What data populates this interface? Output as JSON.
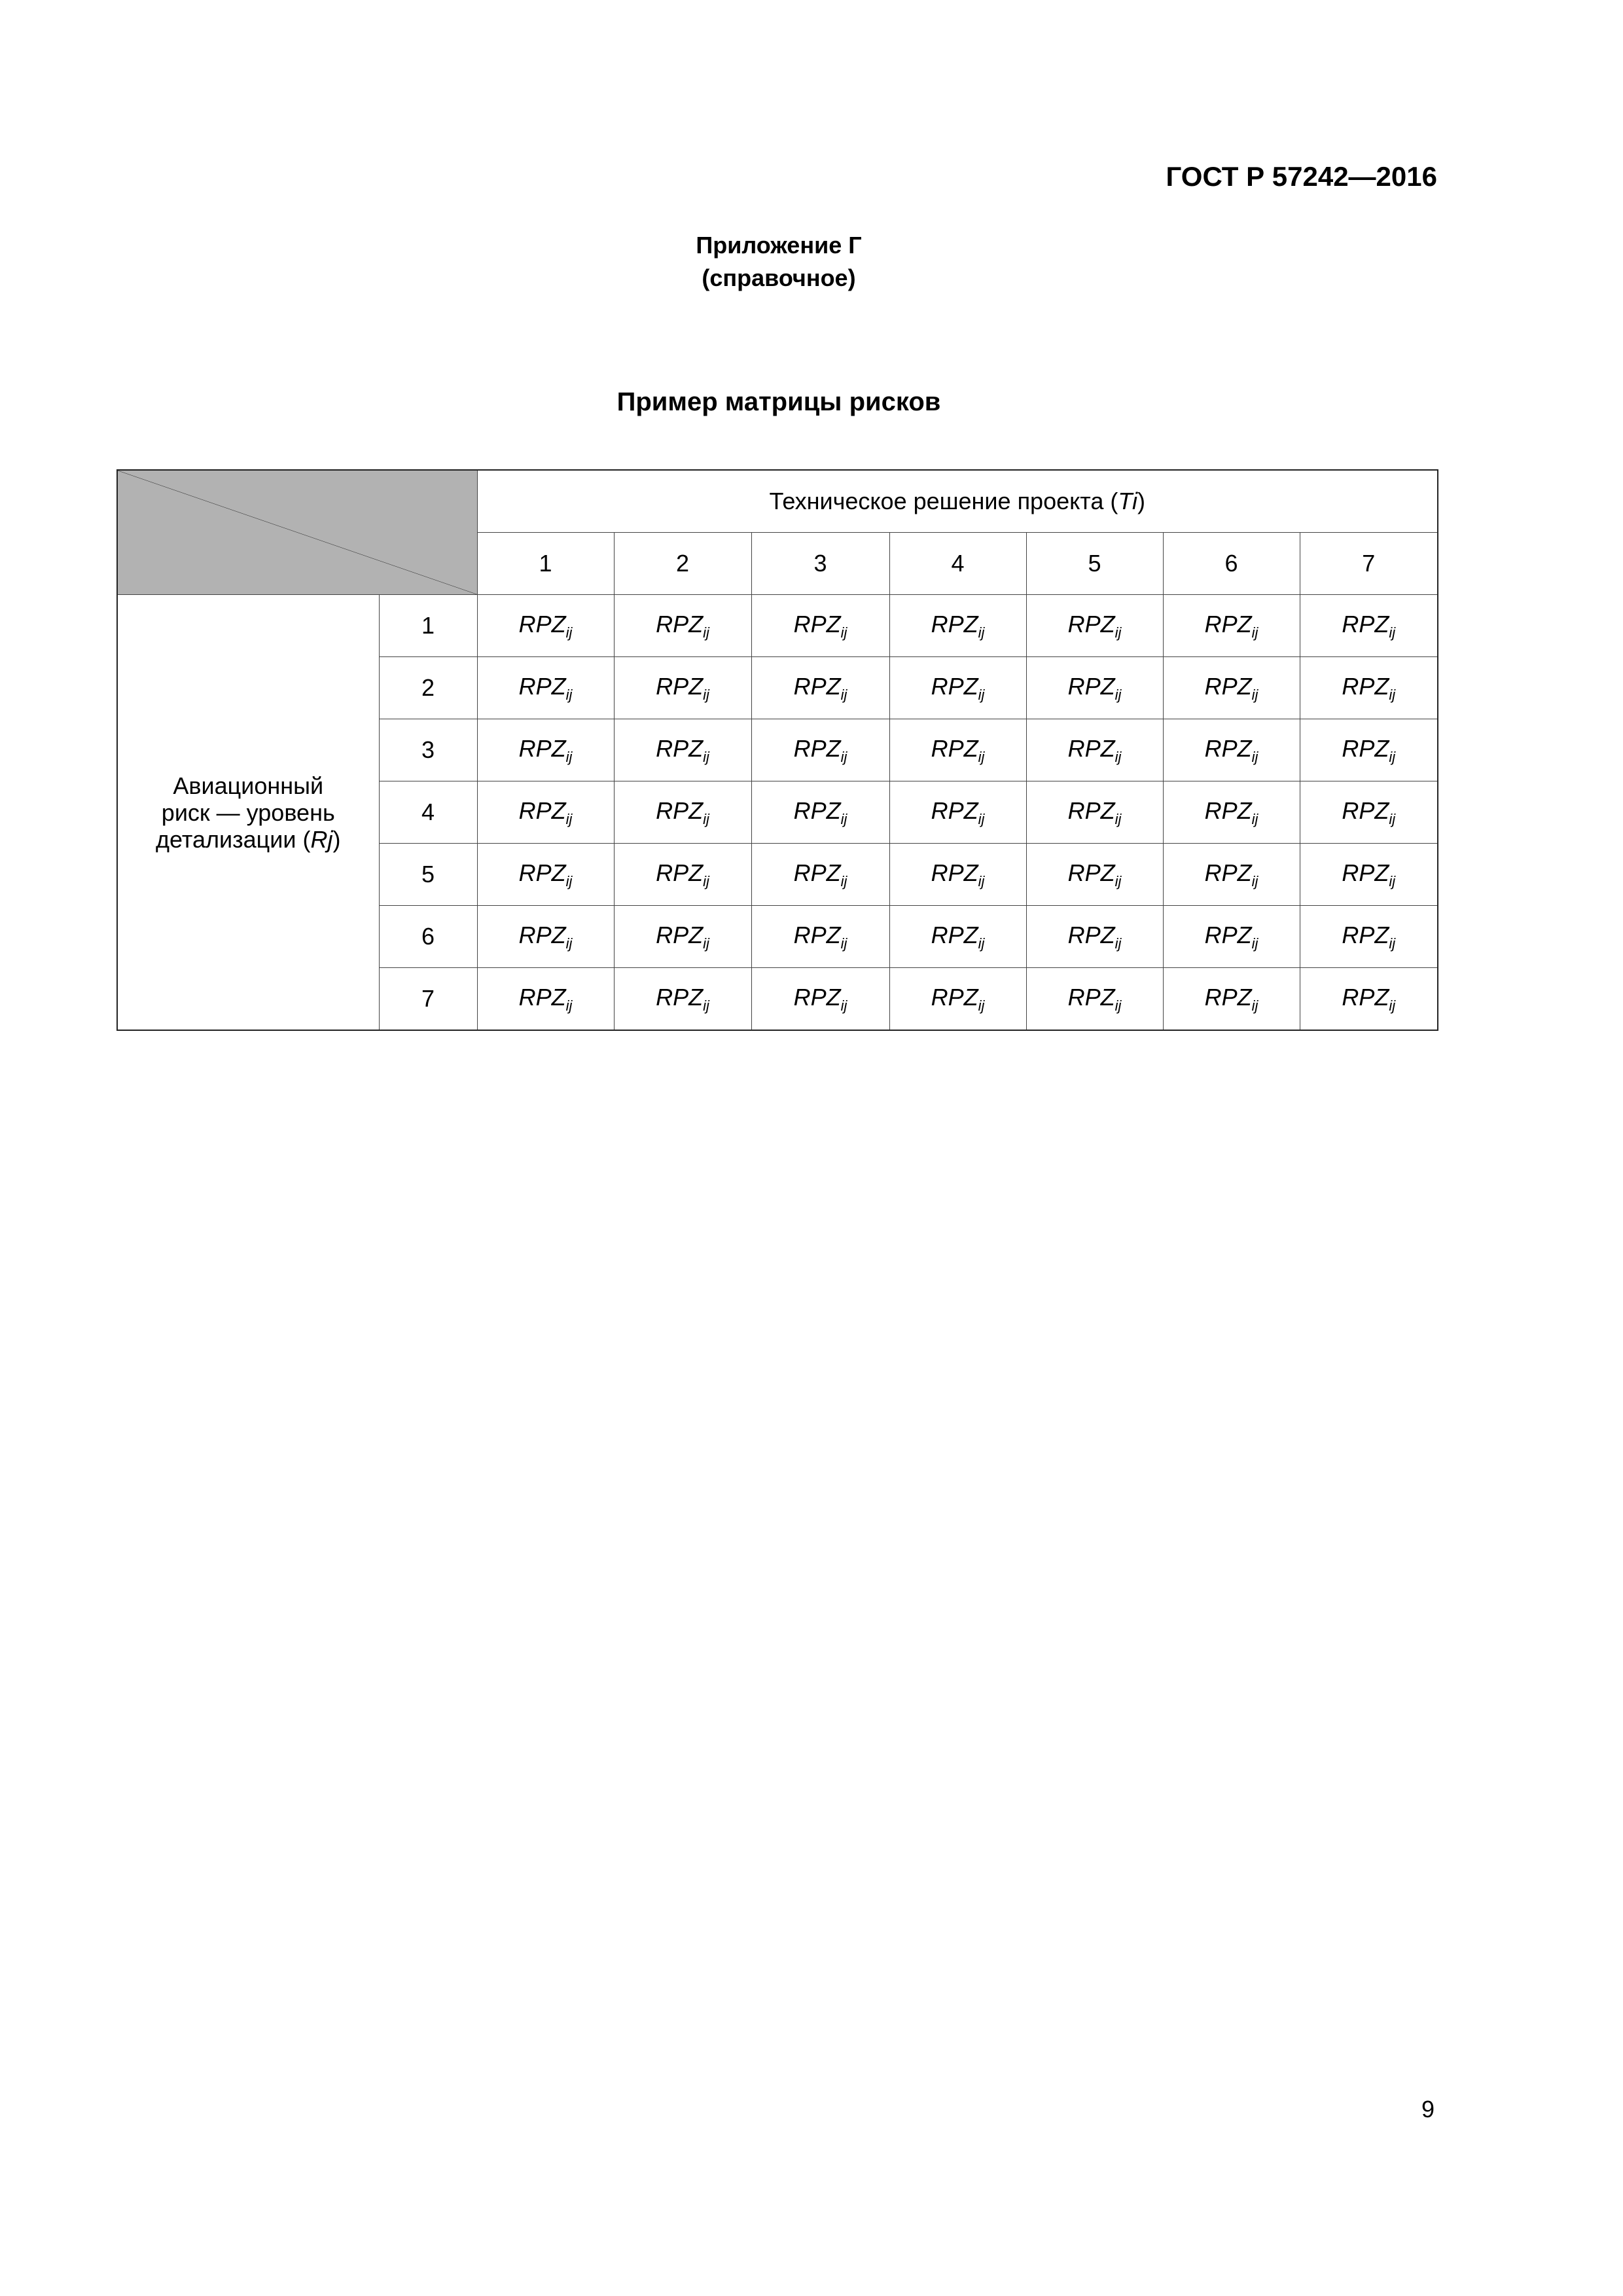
{
  "header": {
    "doc_id": "ГОСТ Р 57242—2016"
  },
  "appendix": {
    "line1": "Приложение Г",
    "line2": "(справочное)"
  },
  "title": "Пример матрицы рисков",
  "table": {
    "col_group_label": "Техническое решение проекта (",
    "col_group_var": "Ti",
    "col_group_close": ")",
    "columns": [
      "1",
      "2",
      "3",
      "4",
      "5",
      "6",
      "7"
    ],
    "row_group_label_1": "Авиационный",
    "row_group_label_2": "риск — уровень",
    "row_group_label_3": "детализации (",
    "row_group_var": "Rj",
    "row_group_close": ")",
    "rows": [
      "1",
      "2",
      "3",
      "4",
      "5",
      "6",
      "7"
    ],
    "cell_main": "RPZ",
    "cell_sub": "ij",
    "header_fill": "#b2b2b2"
  },
  "page_number": "9"
}
